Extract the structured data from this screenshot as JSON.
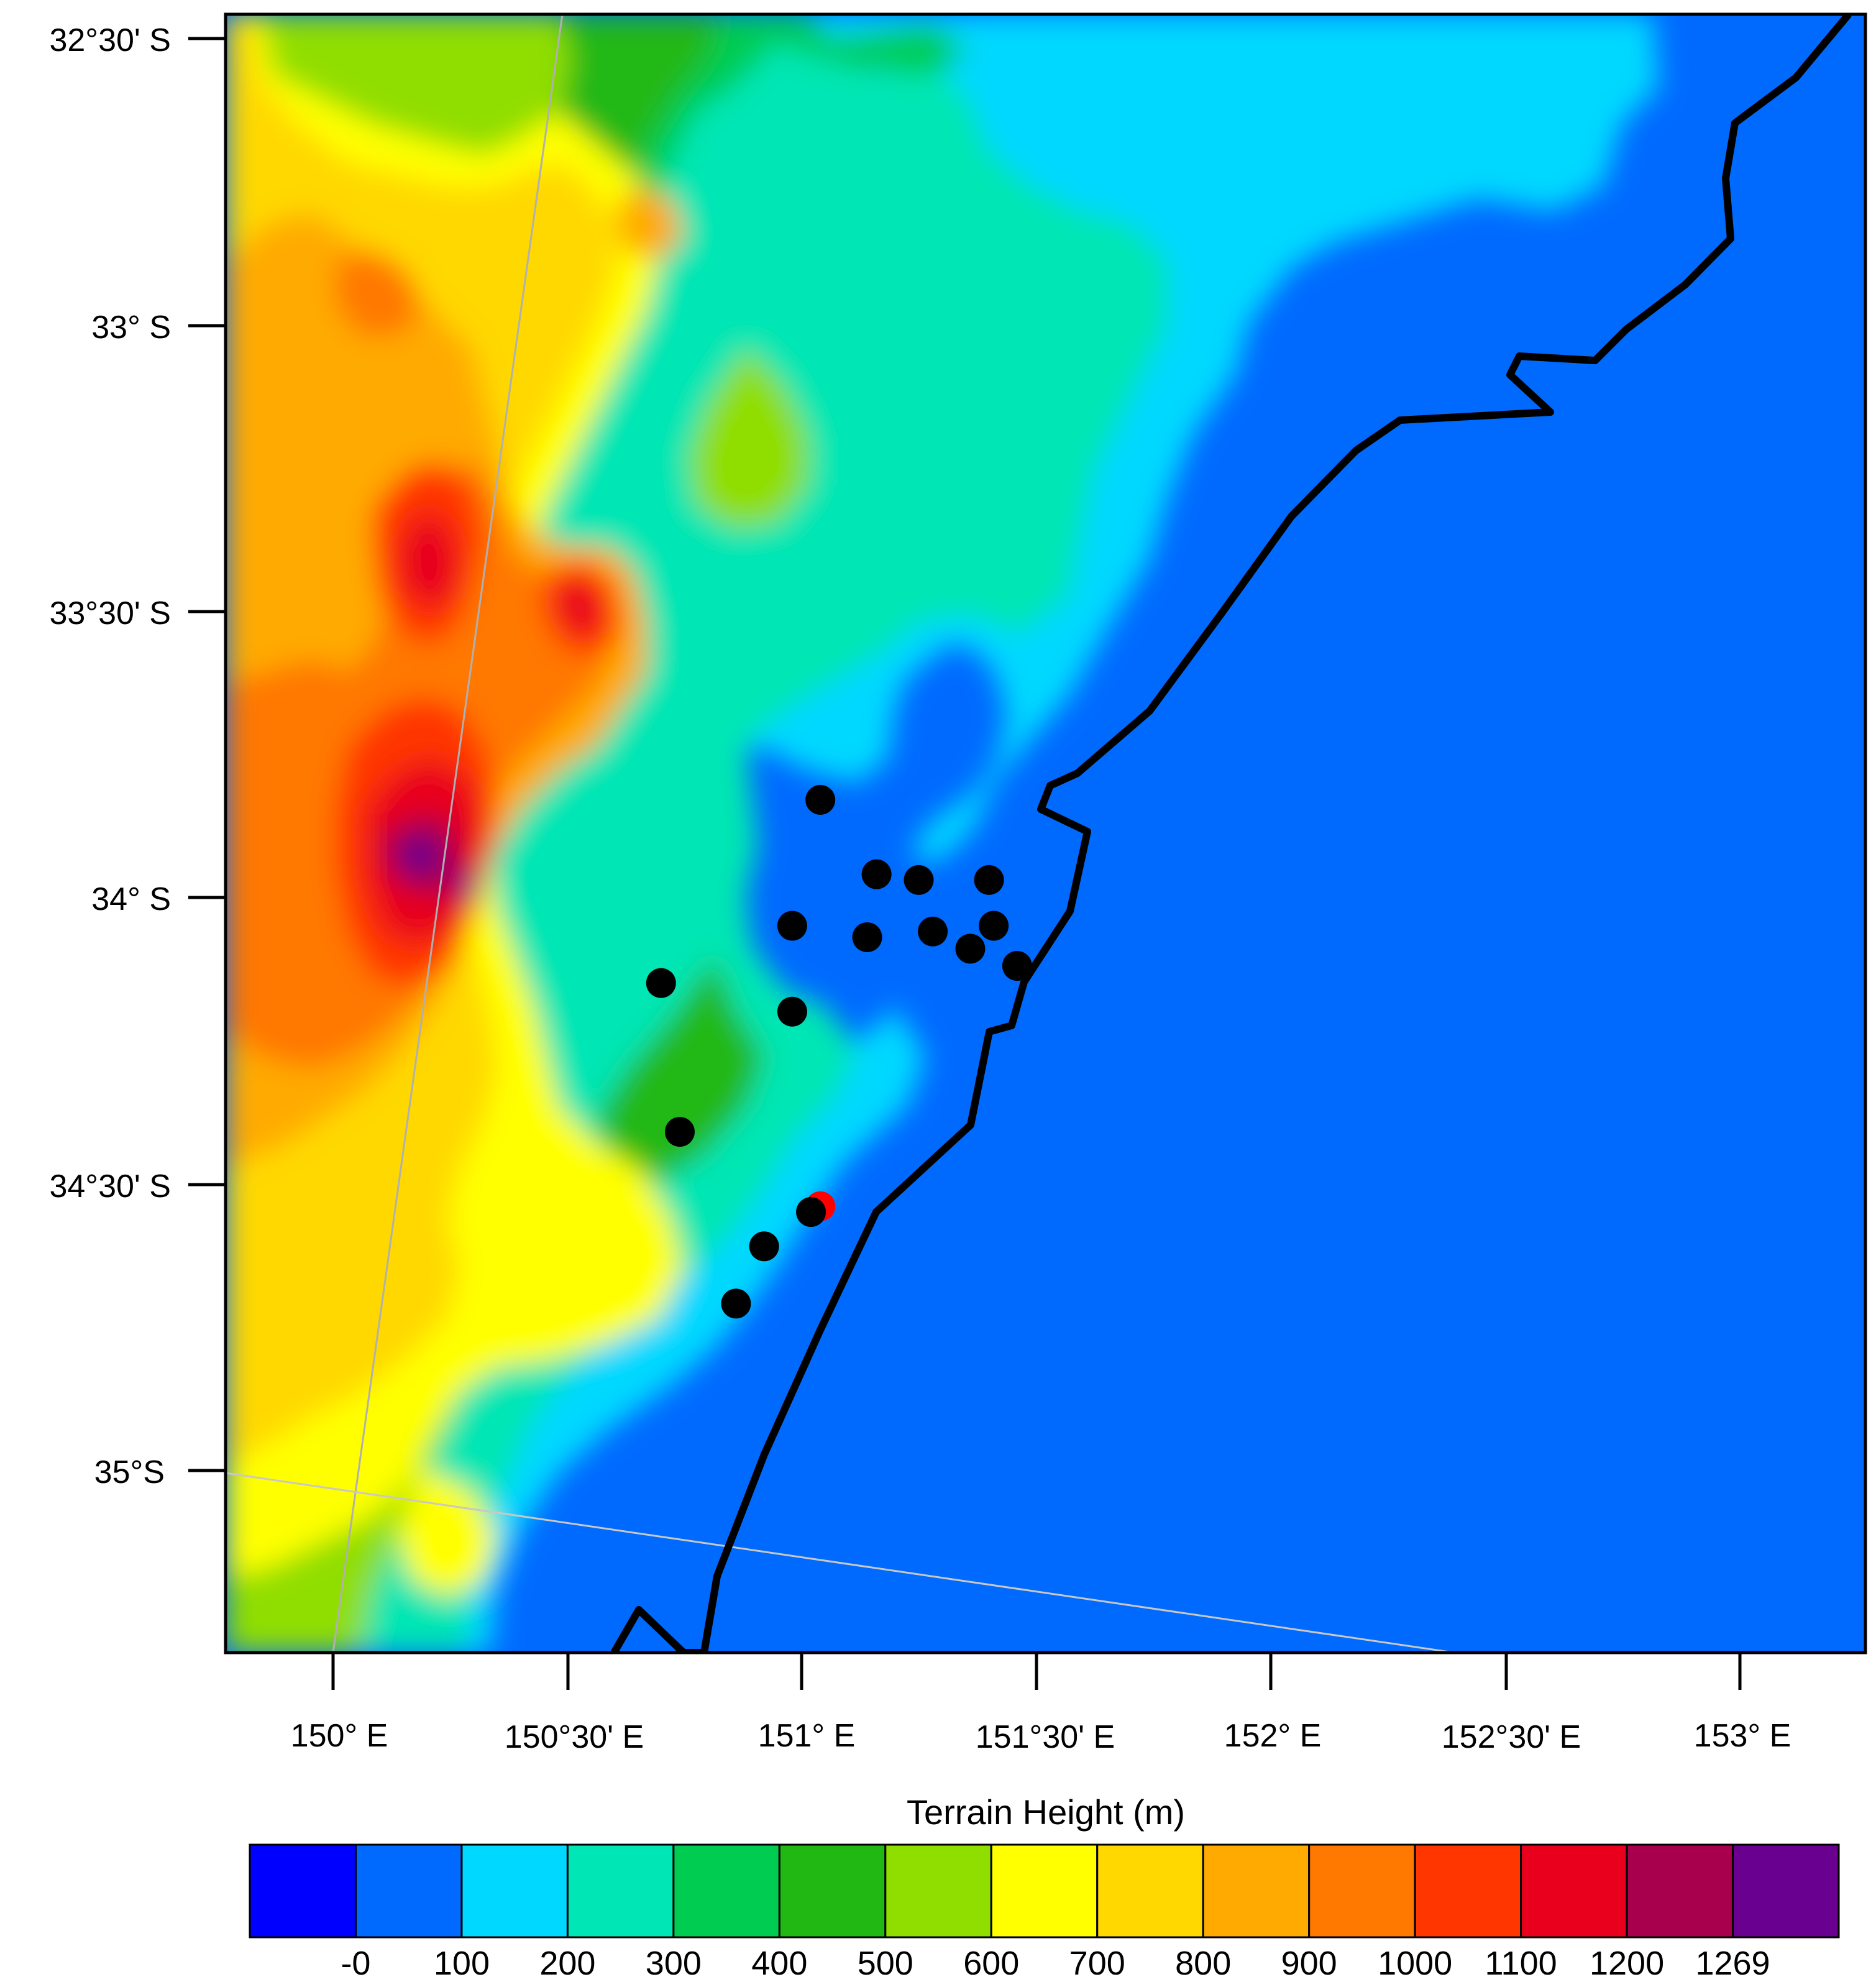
{
  "map": {
    "lat_labels": [
      "32°30' S",
      "33° S",
      "33°30' S",
      "34° S",
      "34°30' S",
      "35°S"
    ],
    "lon_labels": [
      "150° E",
      "150°30' E",
      "151° E",
      "151°30' E",
      "152° E",
      "152°30' E",
      "153° E"
    ],
    "colorbar_title": "Terrain Height  (m)",
    "colorbar_labels": [
      "-0",
      "100",
      "200",
      "300",
      "400",
      "500",
      "600",
      "700",
      "800",
      "900",
      "1000",
      "1100",
      "1200",
      "1269"
    ],
    "colorbar_colors": [
      "#0000ff",
      "#006aff",
      "#00d8ff",
      "#00e6b4",
      "#00cc52",
      "#22b814",
      "#90de00",
      "#ffff00",
      "#ffd800",
      "#ffaa00",
      "#ff7800",
      "#ff3600",
      "#e8001c",
      "#a8004c",
      "#6a0090"
    ],
    "coastline_color": "#000000",
    "marker_colors": {
      "stations": "#000000",
      "highlight": "#ff0000"
    },
    "stations": [
      {
        "lat": -33.83,
        "lon": 151.04
      },
      {
        "lat": -33.96,
        "lon": 151.16
      },
      {
        "lat": -33.97,
        "lon": 151.25
      },
      {
        "lat": -33.97,
        "lon": 151.4
      },
      {
        "lat": -34.05,
        "lon": 150.98
      },
      {
        "lat": -34.07,
        "lon": 151.14
      },
      {
        "lat": -34.06,
        "lon": 151.28
      },
      {
        "lat": -34.09,
        "lon": 151.36
      },
      {
        "lat": -34.05,
        "lon": 151.41
      },
      {
        "lat": -34.12,
        "lon": 151.46
      },
      {
        "lat": -34.15,
        "lon": 150.7
      },
      {
        "lat": -34.2,
        "lon": 150.98
      },
      {
        "lat": -34.41,
        "lon": 150.74
      },
      {
        "lat": -34.55,
        "lon": 151.02
      },
      {
        "lat": -34.61,
        "lon": 150.92
      },
      {
        "lat": -34.71,
        "lon": 150.86
      }
    ],
    "highlight_station": {
      "lat": -34.54,
      "lon": 151.04
    }
  }
}
